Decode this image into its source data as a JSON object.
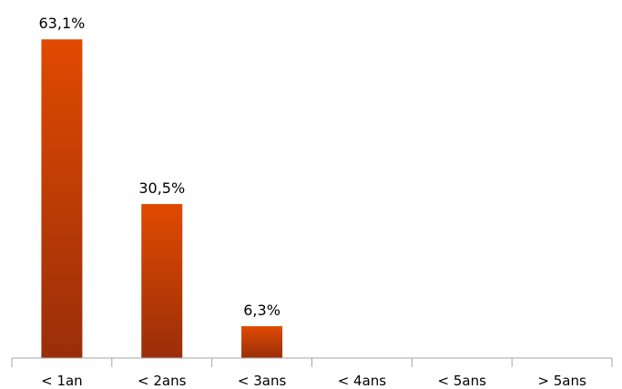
{
  "chart_data": {
    "type": "bar",
    "categories": [
      "< 1an",
      "< 2ans",
      "< 3ans",
      "< 4ans",
      "< 5ans",
      "> 5ans"
    ],
    "values": [
      63.1,
      30.5,
      6.3,
      0,
      0,
      0
    ],
    "data_labels": [
      "63,1%",
      "30,5%",
      "6,3%",
      "",
      "",
      ""
    ],
    "ylim": [
      0,
      70
    ],
    "grid": false,
    "legend": "none",
    "colors": {
      "bar_top": "#E04A00",
      "bar_bottom": "#9A2E0A",
      "axis": "#A6A6A6"
    }
  }
}
